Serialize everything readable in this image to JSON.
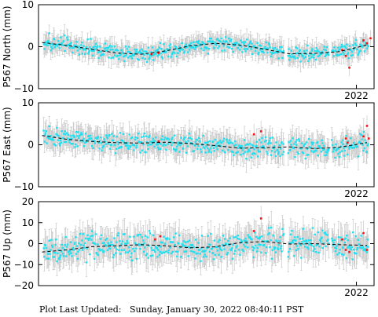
{
  "footer": {
    "label": "Plot Last Updated:",
    "timestamp": "Sunday, January 30, 2022 08:40:11 PST"
  },
  "colors": {
    "points": "#1ee0f0",
    "outliers": "#ff1010",
    "error_bars": "#c8c8c8",
    "trend": "#000000",
    "frame": "#000000"
  },
  "chart_data": [
    {
      "type": "scatter",
      "ylabel": "P567 North (mm)",
      "ylim": [
        -10,
        10
      ],
      "yticks": [
        "10",
        "0",
        "−10"
      ],
      "xlim": [
        2013.0,
        2022.5
      ],
      "xticks": [
        {
          "value": 2022.0,
          "label": "2022"
        }
      ],
      "trend_x": [
        2013.1,
        2013.8,
        2014.5,
        2015.2,
        2015.9,
        2016.6,
        2017.3,
        2018.0,
        2018.7,
        2019.4,
        2020.1,
        2020.8,
        2021.5,
        2022.3
      ],
      "trend_y": [
        1.0,
        0.3,
        -0.6,
        -1.5,
        -1.8,
        -1.0,
        0.2,
        0.8,
        0.4,
        -0.6,
        -1.7,
        -1.6,
        -1.2,
        0.4
      ],
      "noise": 1.2,
      "error_bar": 2.0,
      "gaps": [
        [
          2019.95,
          2020.05
        ],
        [
          2021.22,
          2021.3
        ]
      ],
      "outlier_x": [
        2016.2,
        2016.4,
        2021.6,
        2021.7,
        2021.8,
        2022.2,
        2022.3,
        2022.4
      ],
      "outlier_y": [
        -1.8,
        -1.5,
        -0.8,
        -2.2,
        -5.0,
        1.5,
        0.8,
        2.0
      ]
    },
    {
      "type": "scatter",
      "ylabel": "P567 East (mm)",
      "ylim": [
        -10,
        10
      ],
      "yticks": [
        "10",
        "0",
        "−10"
      ],
      "xlim": [
        2013.0,
        2022.5
      ],
      "xticks": [
        {
          "value": 2022.0,
          "label": "2022"
        }
      ],
      "trend_x": [
        2013.1,
        2013.8,
        2014.5,
        2015.2,
        2015.9,
        2016.6,
        2017.3,
        2018.0,
        2018.7,
        2019.4,
        2020.1,
        2020.8,
        2021.5,
        2022.3
      ],
      "trend_y": [
        2.2,
        1.3,
        0.8,
        0.5,
        0.4,
        0.6,
        0.3,
        -0.2,
        -0.8,
        -0.7,
        -0.5,
        -0.9,
        -0.6,
        0.5
      ],
      "noise": 1.5,
      "error_bar": 2.5,
      "gaps": [
        [
          2019.95,
          2020.05
        ],
        [
          2021.22,
          2021.3
        ]
      ],
      "outlier_x": [
        2016.4,
        2019.1,
        2019.3,
        2021.7,
        2021.75,
        2022.2,
        2022.3,
        2022.35
      ],
      "outlier_y": [
        0.8,
        2.5,
        3.2,
        1.5,
        0.5,
        2.0,
        4.5,
        1.5
      ]
    },
    {
      "type": "scatter",
      "ylabel": "P567 Up (mm)",
      "ylim": [
        -20,
        20
      ],
      "yticks": [
        "20",
        "10",
        "0",
        "−10",
        "−20"
      ],
      "xlim": [
        2013.0,
        2022.5
      ],
      "xticks": [
        {
          "value": 2022.0,
          "label": "2022"
        }
      ],
      "trend_x": [
        2013.1,
        2013.8,
        2014.5,
        2015.2,
        2015.9,
        2016.6,
        2017.3,
        2018.0,
        2018.7,
        2019.4,
        2020.1,
        2020.8,
        2021.5,
        2022.3
      ],
      "trend_y": [
        -4.0,
        -3.0,
        -1.5,
        -1.0,
        -0.5,
        -1.0,
        -2.0,
        -1.5,
        0.5,
        1.0,
        -0.2,
        0.0,
        -0.5,
        -0.8
      ],
      "noise": 4.0,
      "error_bar": 6.0,
      "gaps": [
        [
          2019.95,
          2020.05
        ],
        [
          2021.22,
          2021.3
        ]
      ],
      "outlier_x": [
        2016.3,
        2016.45,
        2019.1,
        2019.3,
        2021.6,
        2021.7,
        2021.8,
        2022.2,
        2022.3
      ],
      "outlier_y": [
        2.0,
        3.5,
        6.0,
        12.0,
        2.0,
        -3.0,
        -4.0,
        5.0,
        -3.0
      ]
    }
  ]
}
